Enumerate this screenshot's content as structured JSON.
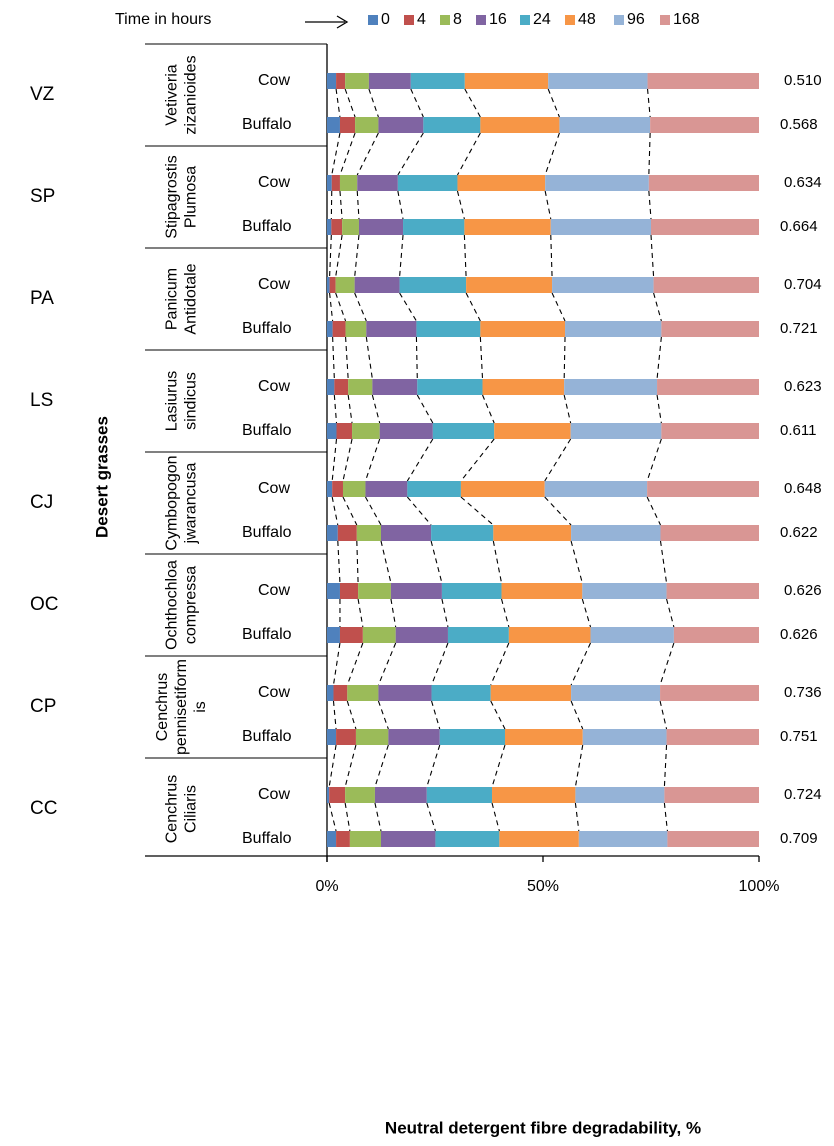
{
  "chart_data": {
    "type": "bar",
    "stacked": true,
    "normalized": true,
    "orientation": "horizontal",
    "title": "",
    "xlabel": "Neutral detergent fibre degradability, %",
    "ylabel": "Desert grasses",
    "xlim": [
      0,
      100
    ],
    "x_ticks": [
      "0%",
      "50%",
      "100%"
    ],
    "legend": {
      "title": "Time in hours",
      "placement": "top",
      "entries": [
        "0",
        "4",
        "8",
        "16",
        "24",
        "48",
        "96",
        "168"
      ]
    },
    "colors": [
      "#4f81bd",
      "#c0504d",
      "#9bbb59",
      "#8064a2",
      "#4bacc6",
      "#f79646",
      "#95b3d7",
      "#d99694"
    ],
    "gridlines": false,
    "groups": [
      {
        "code": "VZ",
        "species": [
          "Vetiveria",
          "zizanioides"
        ],
        "rows": [
          {
            "animal": "Cow",
            "value_label": "0.510",
            "segments": [
              2.1,
              2.1,
              5.5,
              9.7,
              12.5,
              19.3,
              23.0,
              25.8
            ]
          },
          {
            "animal": "Buffalo",
            "value_label": "0.568",
            "segments": [
              3.0,
              3.5,
              5.4,
              10.4,
              13.2,
              18.3,
              21.0,
              25.2
            ]
          }
        ]
      },
      {
        "code": "SP",
        "species": [
          "Stipagrostis",
          "Plumosa"
        ],
        "rows": [
          {
            "animal": "Cow",
            "value_label": "0.634",
            "segments": [
              1.1,
              1.9,
              4.0,
              9.4,
              13.8,
              20.3,
              24.0,
              25.5
            ]
          },
          {
            "animal": "Buffalo",
            "value_label": "0.664",
            "segments": [
              1.0,
              2.5,
              3.9,
              10.2,
              14.2,
              20.0,
              23.2,
              25.0
            ]
          }
        ]
      },
      {
        "code": "PA",
        "species": [
          "Panicum",
          "Antidotale"
        ],
        "rows": [
          {
            "animal": "Cow",
            "value_label": "0.704",
            "segments": [
              0.6,
              1.4,
              4.4,
              10.4,
              15.4,
              19.9,
              23.5,
              24.4
            ]
          },
          {
            "animal": "Buffalo",
            "value_label": "0.721",
            "segments": [
              1.3,
              3.0,
              4.8,
              11.6,
              14.8,
              19.6,
              22.3,
              22.6
            ]
          }
        ]
      },
      {
        "code": "LS",
        "species": [
          "Lasiurus",
          "sindicus"
        ],
        "rows": [
          {
            "animal": "Cow",
            "value_label": "0.623",
            "segments": [
              1.7,
              3.2,
              5.6,
              10.4,
              15.1,
              18.9,
              21.5,
              23.6
            ]
          },
          {
            "animal": "Buffalo",
            "value_label": "0.611",
            "segments": [
              2.2,
              3.6,
              6.4,
              12.3,
              14.2,
              17.7,
              21.0,
              22.6
            ]
          }
        ]
      },
      {
        "code": "CJ",
        "species": [
          "Cymbopogon",
          "jwarancusa"
        ],
        "rows": [
          {
            "animal": "Cow",
            "value_label": "0.648",
            "segments": [
              1.2,
              2.5,
              5.2,
              9.7,
              12.4,
              19.4,
              23.7,
              25.9
            ]
          },
          {
            "animal": "Buffalo",
            "value_label": "0.622",
            "segments": [
              2.5,
              4.4,
              5.6,
              11.6,
              14.4,
              18.0,
              20.7,
              22.8
            ]
          }
        ]
      },
      {
        "code": "OC",
        "species": [
          "Ochthochloa",
          "compressa"
        ],
        "rows": [
          {
            "animal": "Cow",
            "value_label": "0.626",
            "segments": [
              3.0,
              4.2,
              7.6,
              11.8,
              13.8,
              18.7,
              19.5,
              21.4
            ]
          },
          {
            "animal": "Buffalo",
            "value_label": "0.626",
            "segments": [
              3.0,
              5.3,
              7.6,
              12.1,
              14.1,
              18.9,
              19.3,
              19.7
            ]
          }
        ]
      },
      {
        "code": "CP",
        "species": [
          "Cenchrus",
          "penniseti­form",
          "is"
        ],
        "rows": [
          {
            "animal": "Cow",
            "value_label": "0.736",
            "segments": [
              1.5,
              3.2,
              7.2,
              12.3,
              13.7,
              18.6,
              20.6,
              22.9
            ]
          },
          {
            "animal": "Buffalo",
            "value_label": "0.751",
            "segments": [
              2.1,
              4.6,
              7.5,
              11.9,
              15.1,
              18.0,
              19.4,
              21.4
            ]
          }
        ]
      },
      {
        "code": "CC",
        "species": [
          "Cenchrus",
          "Ciliaris"
        ],
        "rows": [
          {
            "animal": "Cow",
            "value_label": "0.724",
            "segments": [
              0.5,
              3.7,
              6.9,
              12.0,
              15.1,
              19.3,
              20.6,
              21.9
            ]
          },
          {
            "animal": "Buffalo",
            "value_label": "0.709",
            "segments": [
              2.1,
              3.2,
              7.2,
              12.6,
              14.8,
              18.4,
              20.5,
              21.2
            ]
          }
        ]
      }
    ]
  }
}
